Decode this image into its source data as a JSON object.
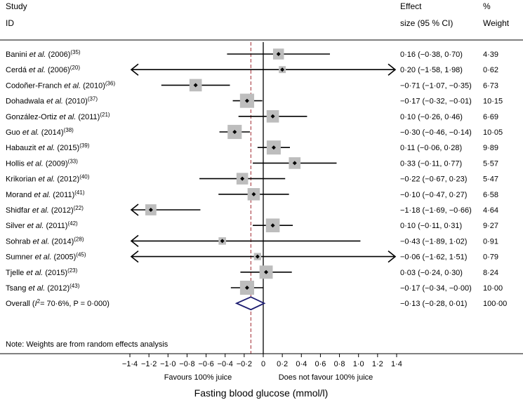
{
  "chart_data": {
    "type": "forest",
    "xlabel": "Fasting blood glucose (mmol/l)",
    "xlim": [
      -1.4,
      1.4
    ],
    "ticks": [
      -1.4,
      -1.2,
      -1.0,
      -0.8,
      -0.6,
      -0.4,
      -0.2,
      0,
      0.2,
      0.4,
      0.6,
      0.8,
      1.0,
      1.2,
      1.4
    ],
    "tick_labels": [
      "−1·4",
      "−1·2",
      "−1·0",
      "−0·8",
      "−0·6",
      "−0·4",
      "−0·2",
      "0",
      "0·2",
      "0·4",
      "0·6",
      "0·8",
      "1·0",
      "1·2",
      "1·4"
    ],
    "left_label": "Favours 100% juice",
    "right_label": "Does not favour 100% juice",
    "headers": {
      "study_line1": "Study",
      "study_line2": "ID",
      "effect_line1": "Effect",
      "effect_line2": "size (95 % CI)",
      "weight_line1": "%",
      "weight_line2": "Weight"
    },
    "studies": [
      {
        "author": "Banini",
        "rest": " (2006)",
        "ref": "(35)",
        "effect": 0.16,
        "lower": -0.38,
        "upper": 0.7,
        "weight": 4.39,
        "ci_text": "0·16 (−0·38, 0·70)",
        "weight_text": "4·39"
      },
      {
        "author": "Cerdá",
        "rest": " (2006)",
        "ref": "(20)",
        "effect": 0.2,
        "lower": -1.58,
        "upper": 1.98,
        "weight": 0.62,
        "ci_text": "0·20 (−1·58, 1·98)",
        "weight_text": "0·62"
      },
      {
        "author": "Codoñer-Franch",
        "rest": " (2010)",
        "ref": "(36)",
        "effect": -0.71,
        "lower": -1.07,
        "upper": -0.35,
        "weight": 6.73,
        "ci_text": "−0·71 (−1·07, −0·35)",
        "weight_text": "6·73"
      },
      {
        "author": "Dohadwala",
        "rest": " (2010)",
        "ref": "(37)",
        "effect": -0.17,
        "lower": -0.32,
        "upper": -0.01,
        "weight": 10.15,
        "ci_text": "−0·17 (−0·32, −0·01)",
        "weight_text": "10·15"
      },
      {
        "author": "González-Ortiz",
        "rest": " (2011)",
        "ref": "(21)",
        "effect": 0.1,
        "lower": -0.26,
        "upper": 0.46,
        "weight": 6.69,
        "ci_text": "0·10 (−0·26, 0·46)",
        "weight_text": "6·69"
      },
      {
        "author": "Guo",
        "rest": " (2014)",
        "ref": "(38)",
        "effect": -0.3,
        "lower": -0.46,
        "upper": -0.14,
        "weight": 10.05,
        "ci_text": "−0·30 (−0·46, −0·14)",
        "weight_text": "10·05"
      },
      {
        "author": "Habauzit",
        "rest": " (2015)",
        "ref": "(39)",
        "effect": 0.11,
        "lower": -0.06,
        "upper": 0.28,
        "weight": 9.89,
        "ci_text": "0·11 (−0·06, 0·28)",
        "weight_text": "9·89"
      },
      {
        "author": "Hollis",
        "rest": " (2009)",
        "ref": "(33)",
        "effect": 0.33,
        "lower": -0.11,
        "upper": 0.77,
        "weight": 5.57,
        "ci_text": "0·33 (−0·11, 0·77)",
        "weight_text": "5·57"
      },
      {
        "author": "Krikorian",
        "rest": " (2012)",
        "ref": "(40)",
        "effect": -0.22,
        "lower": -0.67,
        "upper": 0.23,
        "weight": 5.47,
        "ci_text": "−0·22 (−0·67, 0·23)",
        "weight_text": "5·47"
      },
      {
        "author": "Morand",
        "rest": " (2011)",
        "ref": "(41)",
        "effect": -0.1,
        "lower": -0.47,
        "upper": 0.27,
        "weight": 6.58,
        "ci_text": "−0·10 (−0·47, 0·27)",
        "weight_text": "6·58"
      },
      {
        "author": "Shidfar",
        "rest": " (2012)",
        "ref": "(22)",
        "effect": -1.18,
        "lower": -1.69,
        "upper": -0.66,
        "weight": 4.64,
        "ci_text": "−1·18 (−1·69, −0·66)",
        "weight_text": "4·64"
      },
      {
        "author": "Silver",
        "rest": " (2011)",
        "ref": "(42)",
        "effect": 0.1,
        "lower": -0.11,
        "upper": 0.31,
        "weight": 9.27,
        "ci_text": "0·10 (−0·11, 0·31)",
        "weight_text": "9·27"
      },
      {
        "author": "Sohrab",
        "rest": " (2014)",
        "ref": "(28)",
        "effect": -0.43,
        "lower": -1.89,
        "upper": 1.02,
        "weight": 0.91,
        "ci_text": "−0·43 (−1·89, 1·02)",
        "weight_text": "0·91"
      },
      {
        "author": "Sumner",
        "rest": " (2005)",
        "ref": "(45)",
        "effect": -0.06,
        "lower": -1.62,
        "upper": 1.51,
        "weight": 0.79,
        "ci_text": "−0·06 (−1·62, 1·51)",
        "weight_text": "0·79"
      },
      {
        "author": "Tjelle",
        "rest": " (2015)",
        "ref": "(23)",
        "effect": 0.03,
        "lower": -0.24,
        "upper": 0.3,
        "weight": 8.24,
        "ci_text": "0·03 (−0·24, 0·30)",
        "weight_text": "8·24"
      },
      {
        "author": "Tsang",
        "rest": " (2012)",
        "ref": "(43)",
        "effect": -0.17,
        "lower": -0.34,
        "upper": -0.0,
        "weight": 10.0,
        "ci_text": "−0·17 (−0·34, −0·00)",
        "weight_text": "10·00"
      }
    ],
    "et_al": "et al.",
    "overall": {
      "label": "Overall",
      "i2_label": "I",
      "i2_sup": "2",
      "i2_value": "= 70·6%, P = 0·000",
      "effect": -0.13,
      "lower": -0.28,
      "upper": 0.01,
      "ci_text": "−0·13 (−0·28, 0·01)",
      "weight_text": "100·00"
    },
    "note": "Note: Weights are from random effects analysis"
  }
}
